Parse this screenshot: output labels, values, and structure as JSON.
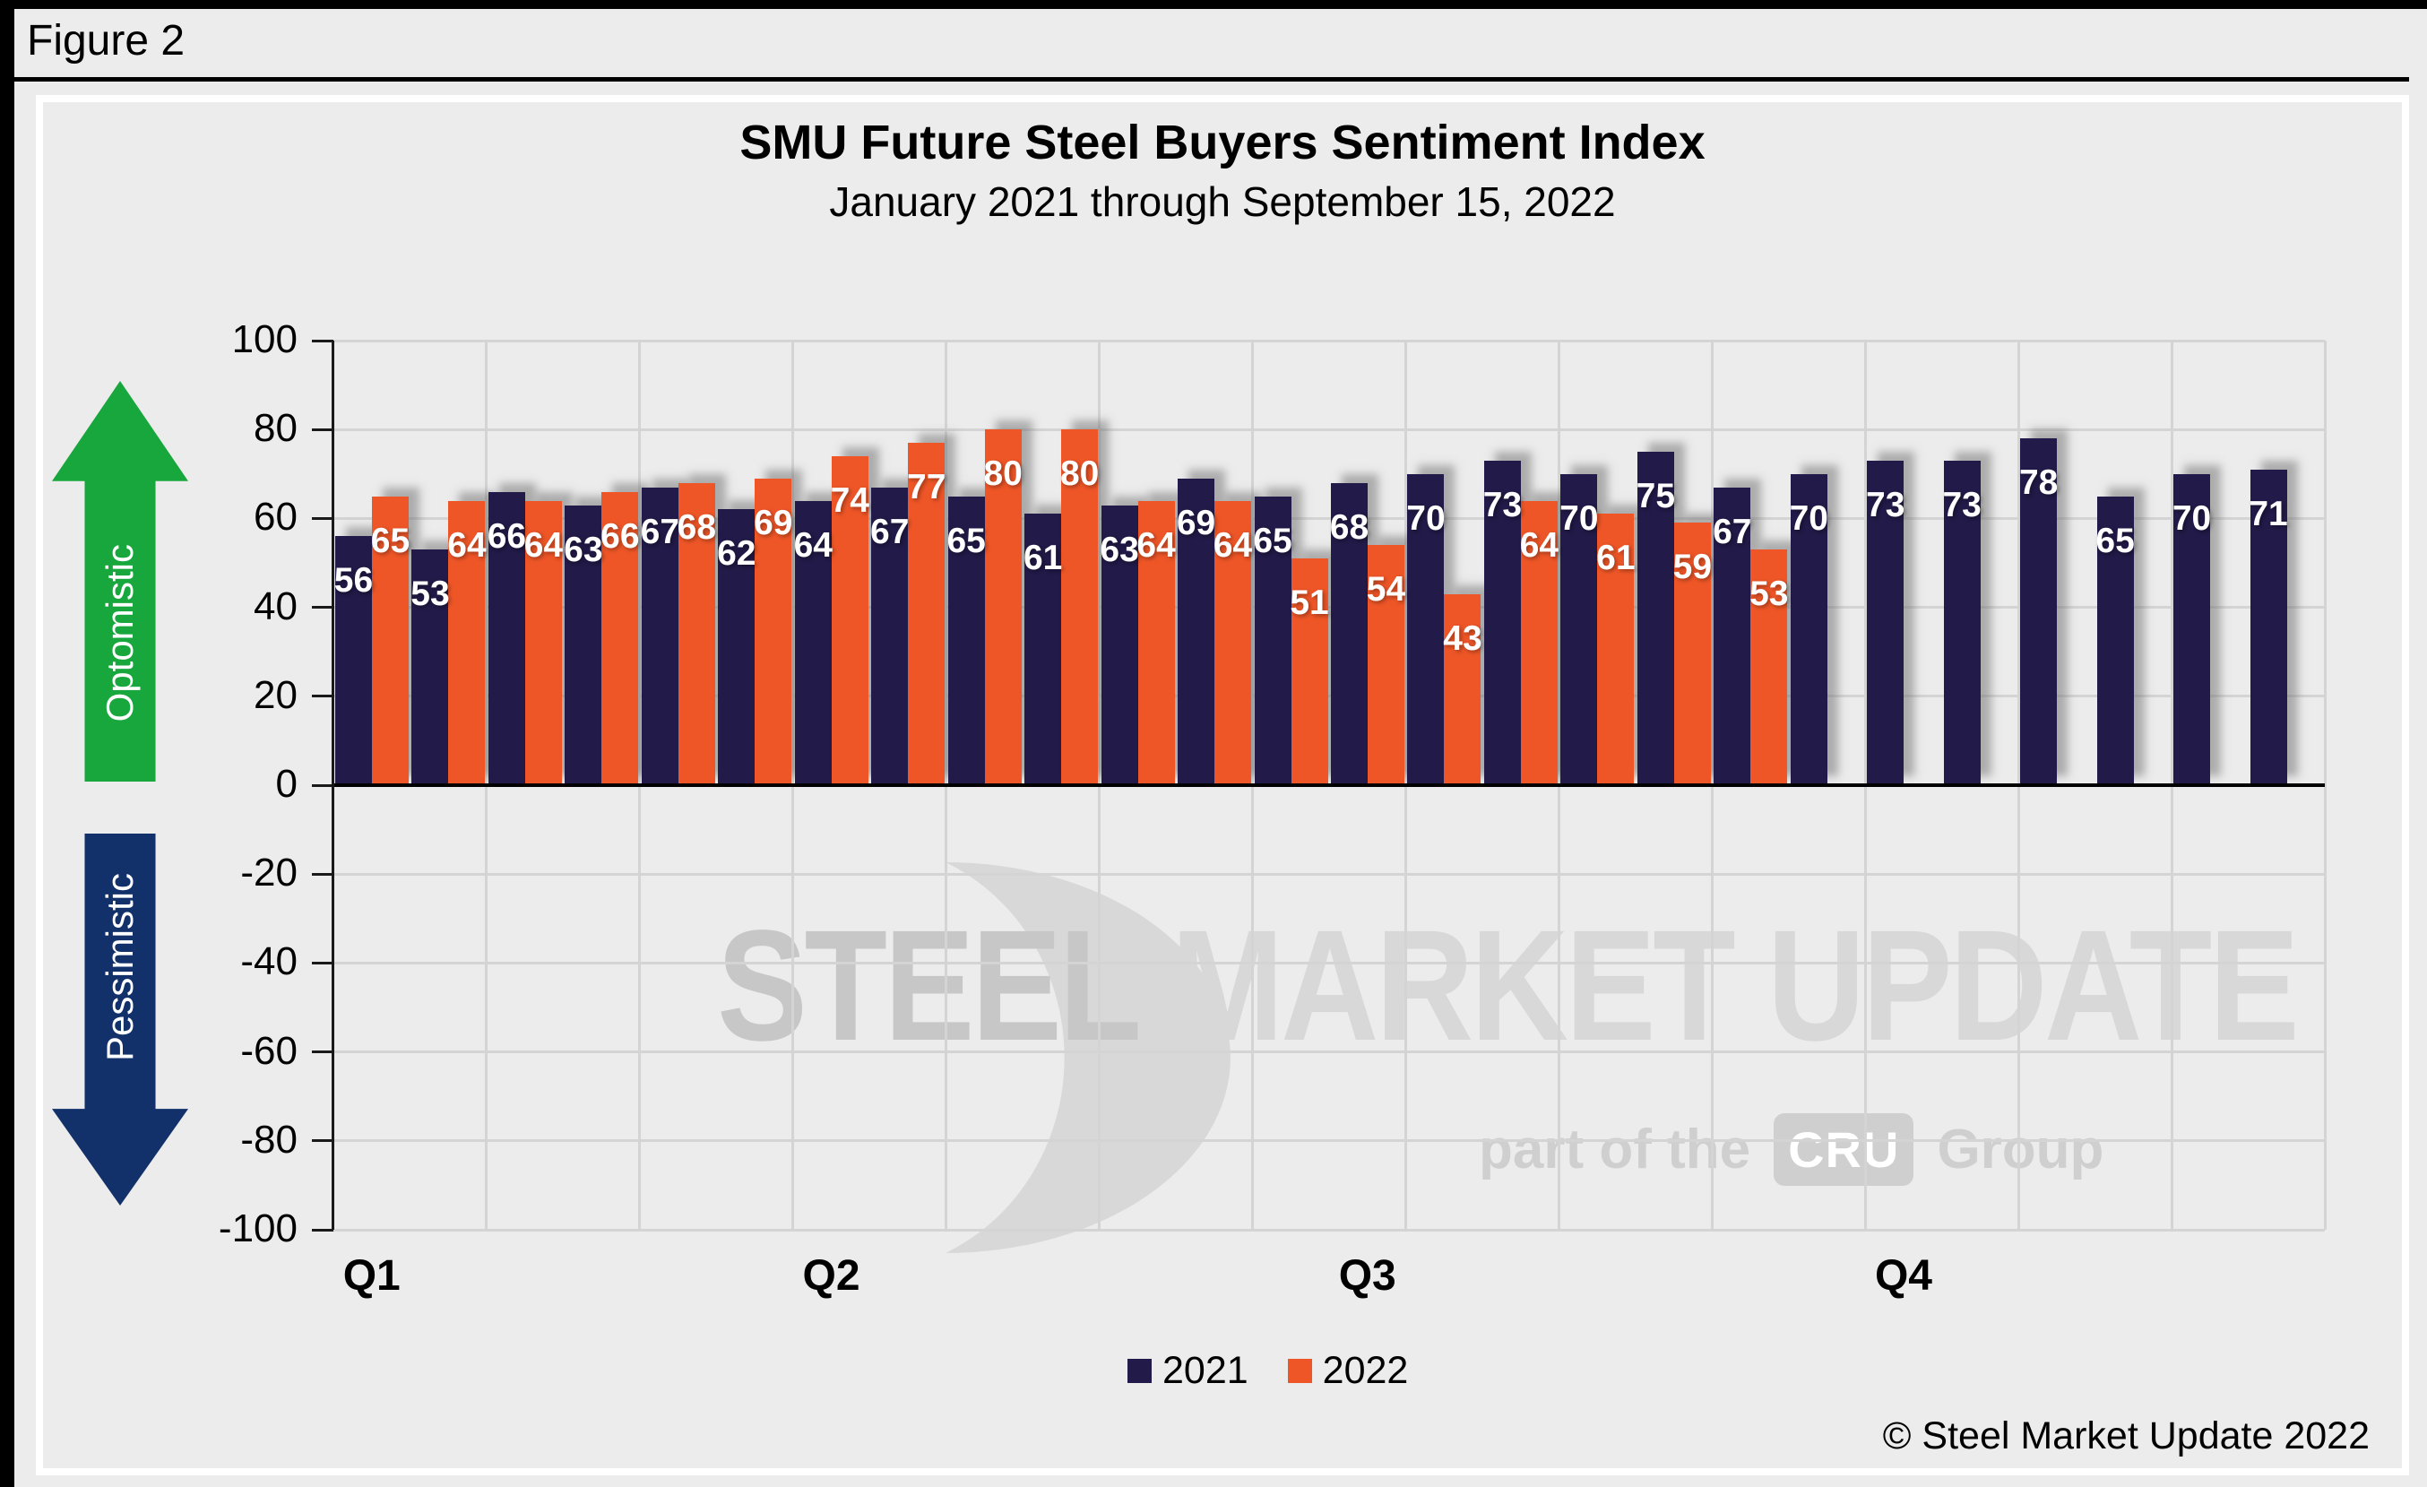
{
  "figure_label": "Figure 2",
  "title": "SMU Future Steel Buyers Sentiment Index",
  "subtitle": "January 2021 through September 15, 2022",
  "optimistic_label": "Optomistic",
  "pessimistic_label": "Pessimistic",
  "copyright": "© Steel Market Update 2022",
  "watermark": {
    "brand_bold": "STEEL",
    "brand_rest": " MARKET UPDATE",
    "tagline_prefix": "part of the",
    "cru_badge": "CRU",
    "tagline_suffix": "Group"
  },
  "colors": {
    "series_2021": "#221A48",
    "series_2022": "#EE5627",
    "optimistic_arrow": "#17A73C",
    "pessimistic_arrow": "#12306A",
    "background": "#ECECEC",
    "gridline": "#d4d4d4"
  },
  "legend": [
    {
      "label": "2021",
      "color": "#221A48"
    },
    {
      "label": "2022",
      "color": "#EE5627"
    }
  ],
  "chart_data": {
    "type": "bar",
    "title": "SMU Future Steel Buyers Sentiment Index",
    "subtitle": "January 2021 through September 15, 2022",
    "categories": [
      "Q1",
      "Q2",
      "Q3",
      "Q4"
    ],
    "quarter_start_period_index": [
      0,
      6,
      13,
      20
    ],
    "n_periods": 26,
    "ylim": [
      -100,
      100
    ],
    "ytick_step": 20,
    "grid": "both",
    "legend_position": "bottom",
    "value_labels": true,
    "series": [
      {
        "name": "2021",
        "color": "#221A48",
        "values": [
          56,
          53,
          66,
          63,
          67,
          62,
          64,
          67,
          65,
          61,
          63,
          69,
          65,
          68,
          70,
          73,
          70,
          75,
          67,
          70,
          73,
          73,
          78,
          65,
          70,
          71
        ]
      },
      {
        "name": "2022",
        "color": "#EE5627",
        "values": [
          65,
          64,
          64,
          66,
          68,
          69,
          74,
          77,
          80,
          80,
          64,
          64,
          51,
          54,
          43,
          64,
          61,
          59,
          53
        ]
      }
    ]
  }
}
